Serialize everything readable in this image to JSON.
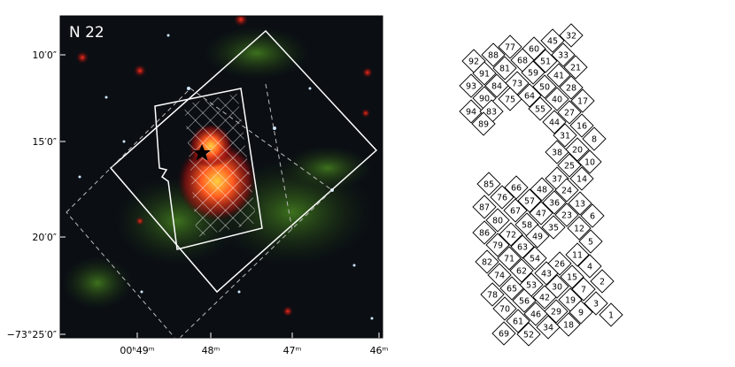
{
  "panel": {
    "label": "N 22",
    "y_labels": [
      "10′0″",
      "15′0″",
      "20′0″",
      "−73°25′0″"
    ],
    "x_labels": [
      "00ʰ49ᵐ",
      "48ᵐ",
      "47ᵐ",
      "46ᵐ"
    ]
  },
  "tiles": [
    32,
    45,
    60,
    77,
    88,
    92,
    33,
    51,
    68,
    91,
    81,
    21,
    41,
    59,
    73,
    93,
    84,
    50,
    28,
    90,
    75,
    64,
    17,
    40,
    94,
    83,
    55,
    27,
    89,
    44,
    16,
    31,
    8,
    20,
    38,
    10,
    25,
    14,
    37,
    85,
    66,
    48,
    24,
    76,
    57,
    13,
    87,
    36,
    67,
    6,
    23,
    47,
    80,
    58,
    35,
    12,
    86,
    72,
    49,
    5,
    79,
    63,
    11,
    82,
    71,
    54,
    26,
    4,
    74,
    62,
    43,
    15,
    2,
    53,
    65,
    30,
    7,
    78,
    56,
    42,
    19,
    3,
    70,
    46,
    29,
    9,
    1,
    61,
    18,
    69,
    52,
    34
  ]
}
